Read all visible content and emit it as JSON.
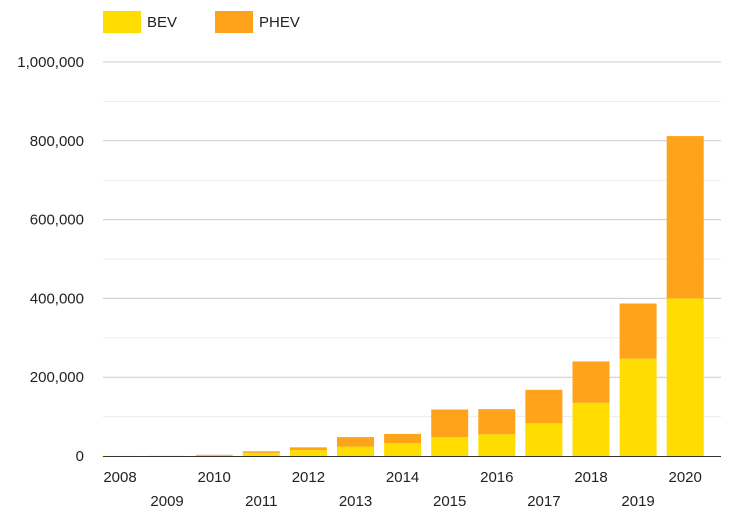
{
  "chart_data": {
    "type": "bar",
    "stacked": true,
    "title": "",
    "xlabel": "",
    "ylabel": "",
    "categories": [
      "2008",
      "2009",
      "2010",
      "2011",
      "2012",
      "2013",
      "2014",
      "2015",
      "2016",
      "2017",
      "2018",
      "2019",
      "2020"
    ],
    "series": [
      {
        "name": "BEV",
        "color": "#FFDD00",
        "values": [
          200,
          500,
          2000,
          8000,
          15000,
          24000,
          33000,
          48000,
          55000,
          83000,
          135000,
          247000,
          400000
        ]
      },
      {
        "name": "PHEV",
        "color": "#FFA31A",
        "values": [
          0,
          0,
          1000,
          4000,
          7000,
          24000,
          23000,
          70000,
          64000,
          85000,
          105000,
          140000,
          412000
        ]
      }
    ],
    "ylim": [
      0,
      1000000
    ],
    "y_ticks": [
      0,
      200000,
      400000,
      600000,
      800000,
      1000000
    ],
    "y_tick_labels": [
      "0",
      "200,000",
      "400,000",
      "600,000",
      "800,000",
      "1,000,000"
    ],
    "grid": true,
    "legend_position": "top-left"
  }
}
